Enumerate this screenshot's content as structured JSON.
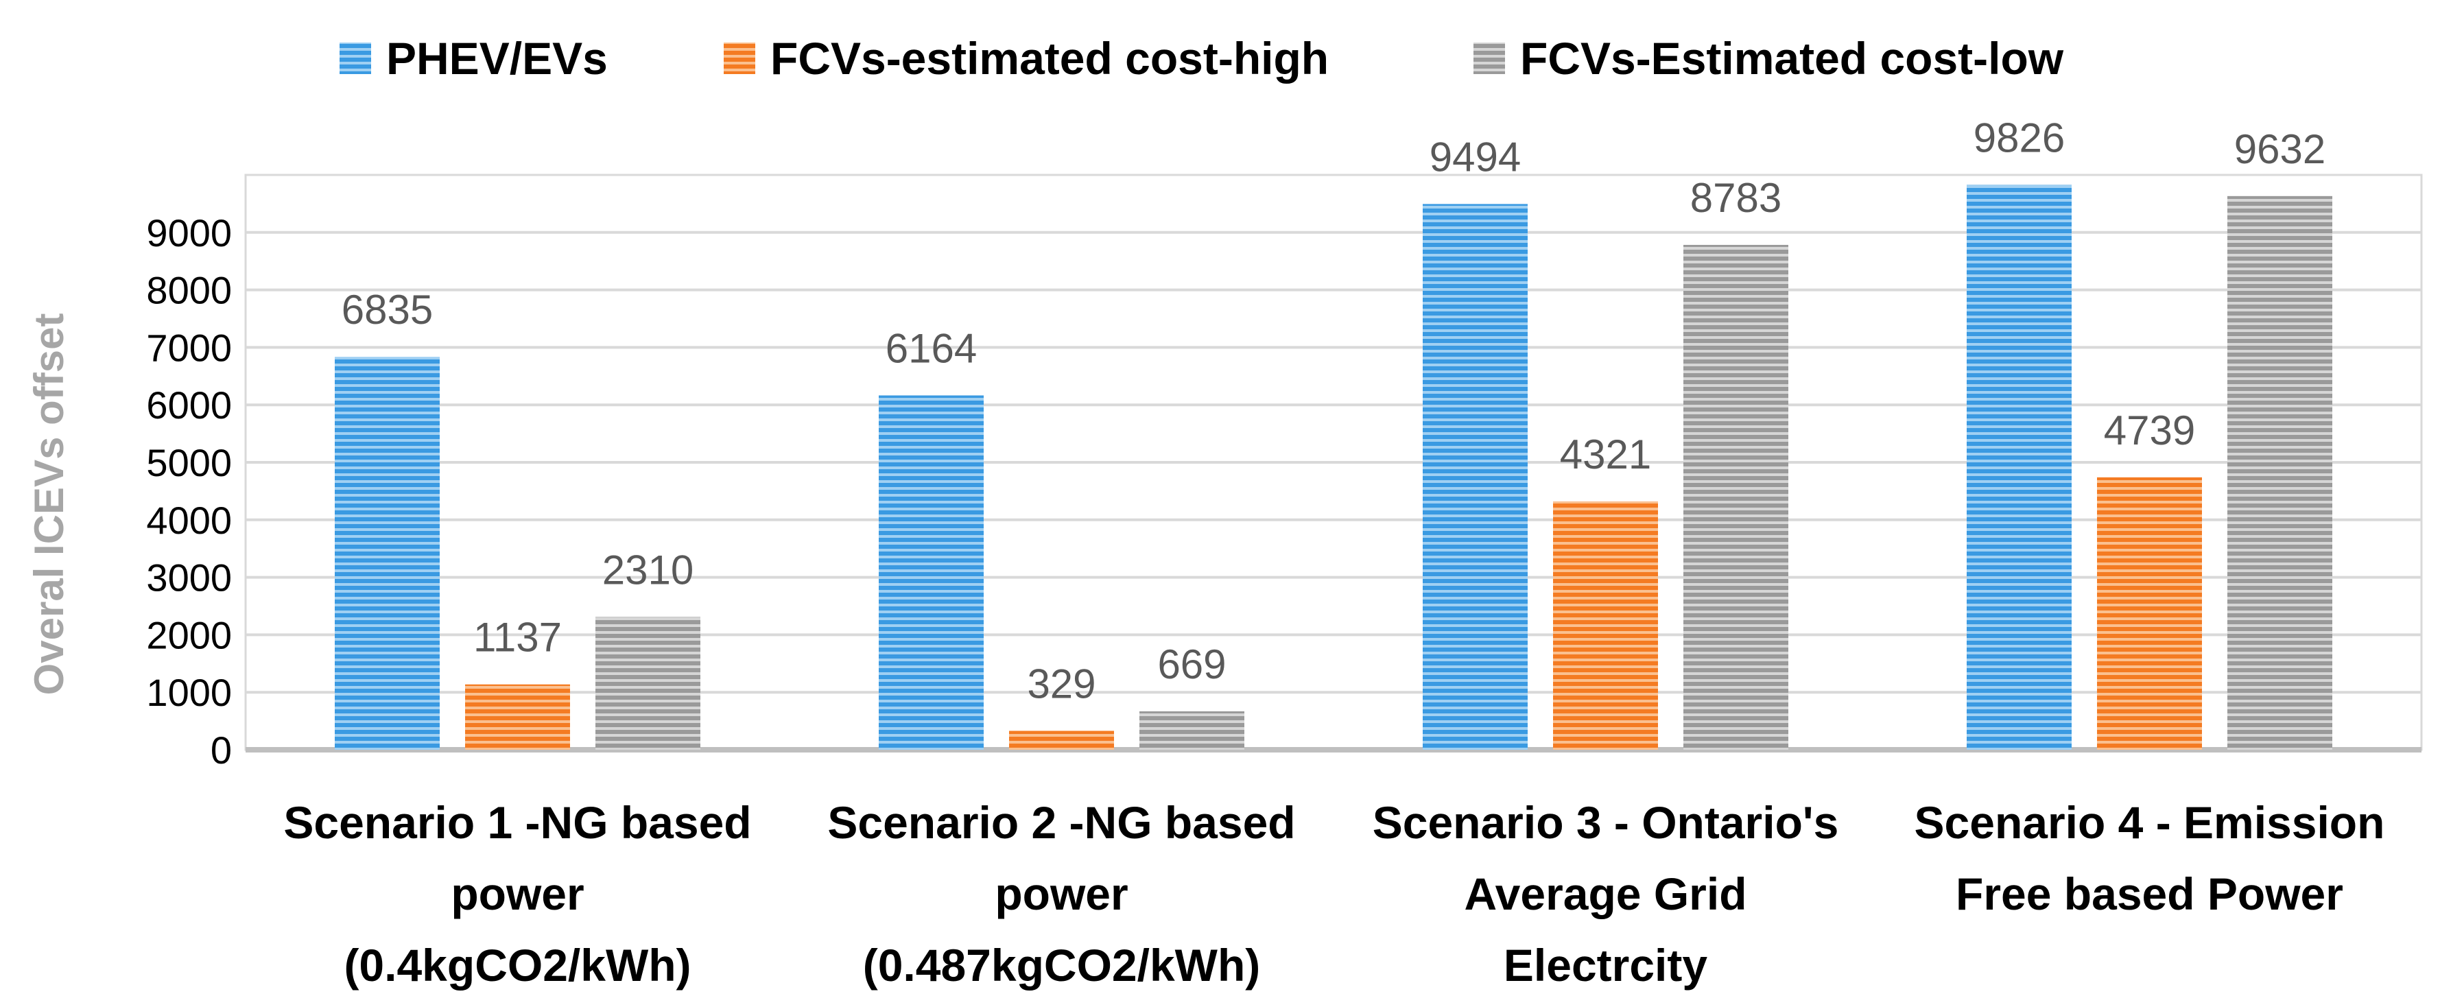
{
  "chart_data": {
    "type": "bar",
    "title": "",
    "xlabel": "",
    "ylabel": "Overal   ICEVs offset",
    "ylim": [
      0,
      10000
    ],
    "yticks": [
      0,
      1000,
      2000,
      3000,
      4000,
      5000,
      6000,
      7000,
      8000,
      9000
    ],
    "grid": true,
    "legend_position": "top",
    "categories": [
      [
        "Scenario 1 -NG based",
        "power",
        "(0.4kgCO2/kWh)"
      ],
      [
        "Scenario 2 -NG based",
        "power",
        "(0.487kgCO2/kWh)"
      ],
      [
        "Scenario 3 - Ontario's",
        "Average Grid",
        "Electrcity"
      ],
      [
        "Scenario 4 - Emission",
        "Free based Power"
      ]
    ],
    "series": [
      {
        "name": "PHEV/EVs",
        "color": "#3a9ae2",
        "stripe": "#9fd0f3",
        "values": [
          6835,
          6164,
          9494,
          9826
        ]
      },
      {
        "name": "FCVs-estimated cost-high",
        "color": "#f47b22",
        "stripe": "#fbc08f",
        "values": [
          1137,
          329,
          4321,
          4739
        ]
      },
      {
        "name": "FCVs-Estimated cost-low",
        "color": "#9a9a9a",
        "stripe": "#d6d6d6",
        "values": [
          2310,
          669,
          8783,
          9632
        ]
      }
    ],
    "data_labels": true
  }
}
